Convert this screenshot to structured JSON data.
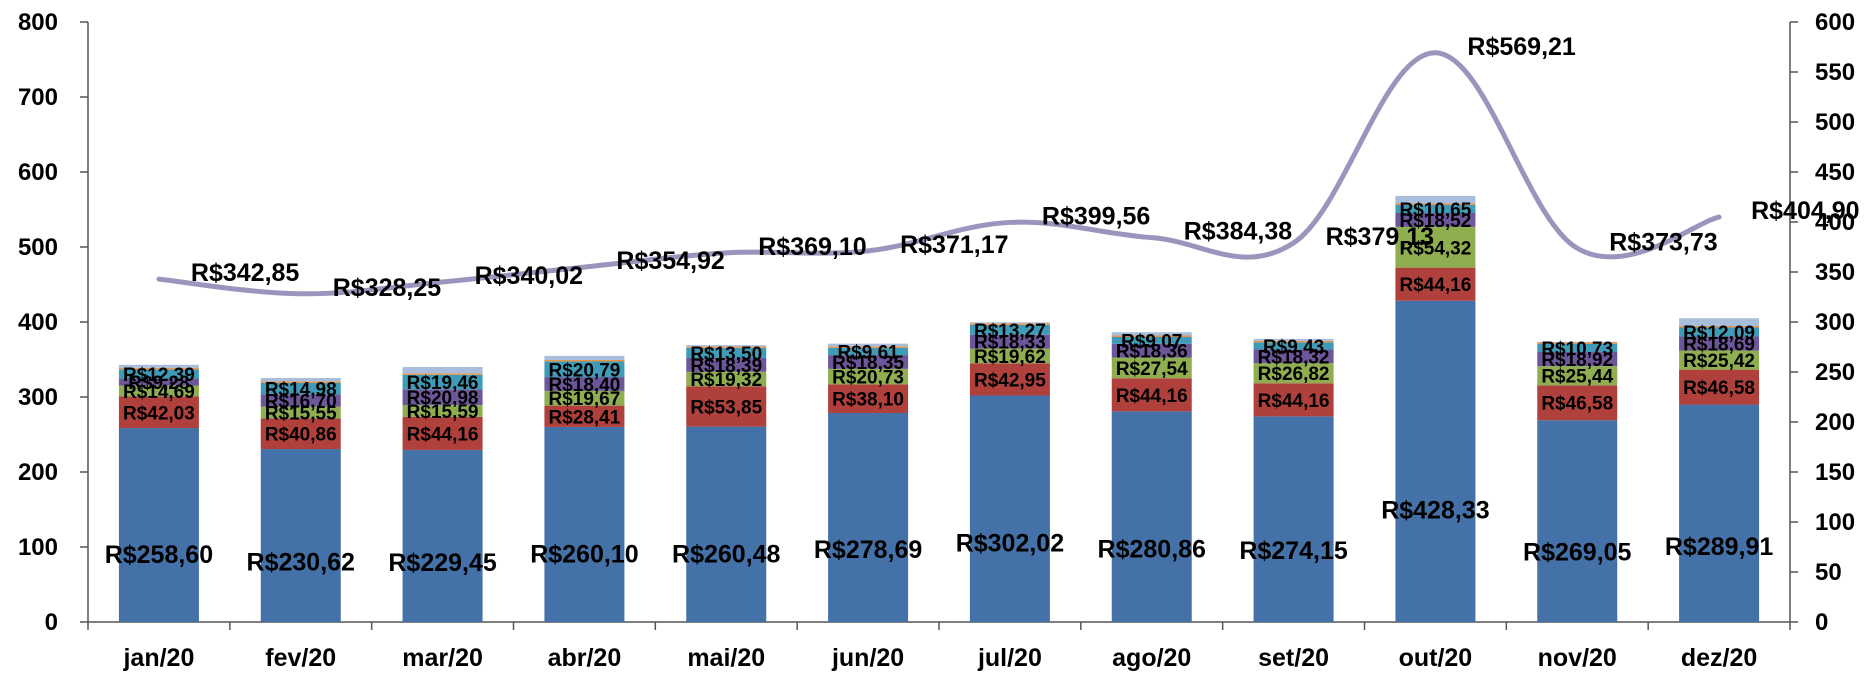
{
  "chart_data": {
    "type": "bar",
    "stacked": true,
    "categories": [
      "jan/20",
      "fev/20",
      "mar/20",
      "abr/20",
      "mai/20",
      "jun/20",
      "jul/20",
      "ago/20",
      "set/20",
      "out/20",
      "nov/20",
      "dez/20"
    ],
    "ylim": [
      0,
      800
    ],
    "yticks": [
      0,
      100,
      200,
      300,
      400,
      500,
      600,
      700,
      800
    ],
    "y2lim": [
      0,
      600
    ],
    "y2ticks": [
      0,
      50,
      100,
      150,
      200,
      250,
      300,
      350,
      400,
      450,
      500,
      550,
      600
    ],
    "grid": false,
    "series": [
      {
        "color": "#4472a8",
        "values": [
          258.6,
          230.62,
          229.45,
          260.1,
          260.48,
          278.69,
          302.02,
          280.86,
          274.15,
          428.33,
          269.05,
          289.91
        ],
        "labels": [
          "R$258,60",
          "R$230,62",
          "R$229,45",
          "R$260,10",
          "R$260,48",
          "R$278,69",
          "R$302,02",
          "R$280,86",
          "R$274,15",
          "R$428,33",
          "R$269,05",
          "R$289,91"
        ]
      },
      {
        "color": "#b0403c",
        "values": [
          42.03,
          40.86,
          44.16,
          28.41,
          53.85,
          38.1,
          42.95,
          44.16,
          44.16,
          44.16,
          46.58,
          46.58
        ],
        "labels": [
          "R$42,03",
          "R$40,86",
          "R$44,16",
          "R$28,41",
          "R$53,85",
          "R$38,10",
          "R$42,95",
          "R$44,16",
          "R$44,16",
          "R$44,16",
          "R$46,58",
          "R$46,58"
        ]
      },
      {
        "color": "#8fae4f",
        "values": [
          14.69,
          15.55,
          15.59,
          19.67,
          19.32,
          20.73,
          19.62,
          27.54,
          26.82,
          54.32,
          25.44,
          25.42
        ],
        "labels": [
          "R$14,69",
          "R$15,55",
          "R$15,59",
          "R$19,67",
          "R$19,32",
          "R$20,73",
          "R$19,62",
          "R$27,54",
          "R$26,82",
          "R$54,32",
          "R$25,44",
          "R$25,42"
        ]
      },
      {
        "color": "#6e569a",
        "values": [
          9.28,
          16.7,
          20.98,
          18.4,
          18.39,
          18.35,
          18.33,
          18.36,
          18.32,
          18.52,
          18.92,
          18.69
        ],
        "labels": [
          "R$9,28",
          "R$16,70",
          "R$20,98",
          "R$18,40",
          "R$18,39",
          "R$18,35",
          "R$18,33",
          "R$18,36",
          "R$18,32",
          "R$18,52",
          "R$18,92",
          "R$18,69"
        ]
      },
      {
        "color": "#3f9cb8",
        "values": [
          12.39,
          14.98,
          19.46,
          20.79,
          13.5,
          9.61,
          13.27,
          9.07,
          9.43,
          10.65,
          10.73,
          12.09
        ],
        "labels": [
          "R$12,39",
          "R$14,98",
          "R$19,46",
          "R$20,79",
          "R$13,50",
          "R$9,61",
          "R$13,27",
          "R$9,07",
          "R$9,43",
          "R$10,65",
          "R$10,73",
          "R$12,09"
        ]
      },
      {
        "color": "#e8954a",
        "values": [
          2.0,
          2.0,
          2.0,
          2.0,
          2.0,
          2.0,
          2.0,
          2.0,
          2.0,
          2.0,
          2.0,
          2.0
        ],
        "labels": []
      },
      {
        "color": "#a8bedc",
        "values": [
          3.9,
          4.6,
          8.4,
          5.5,
          1.6,
          3.7,
          1.4,
          4.4,
          2.6,
          10.2,
          0.9,
          10.3
        ],
        "labels": []
      }
    ],
    "line": {
      "axis": "right",
      "color": "#9b95bd",
      "values": [
        342.85,
        328.25,
        340.02,
        354.92,
        369.1,
        371.17,
        399.56,
        384.38,
        379.13,
        569.21,
        373.73,
        404.9
      ],
      "labels": [
        "R$342,85",
        "R$328,25",
        "R$340,02",
        "R$354,92",
        "R$369,10",
        "R$371,17",
        "R$399,56",
        "R$384,38",
        "R$379,13",
        "R$569,21",
        "R$373,73",
        "R$404,90"
      ]
    }
  }
}
